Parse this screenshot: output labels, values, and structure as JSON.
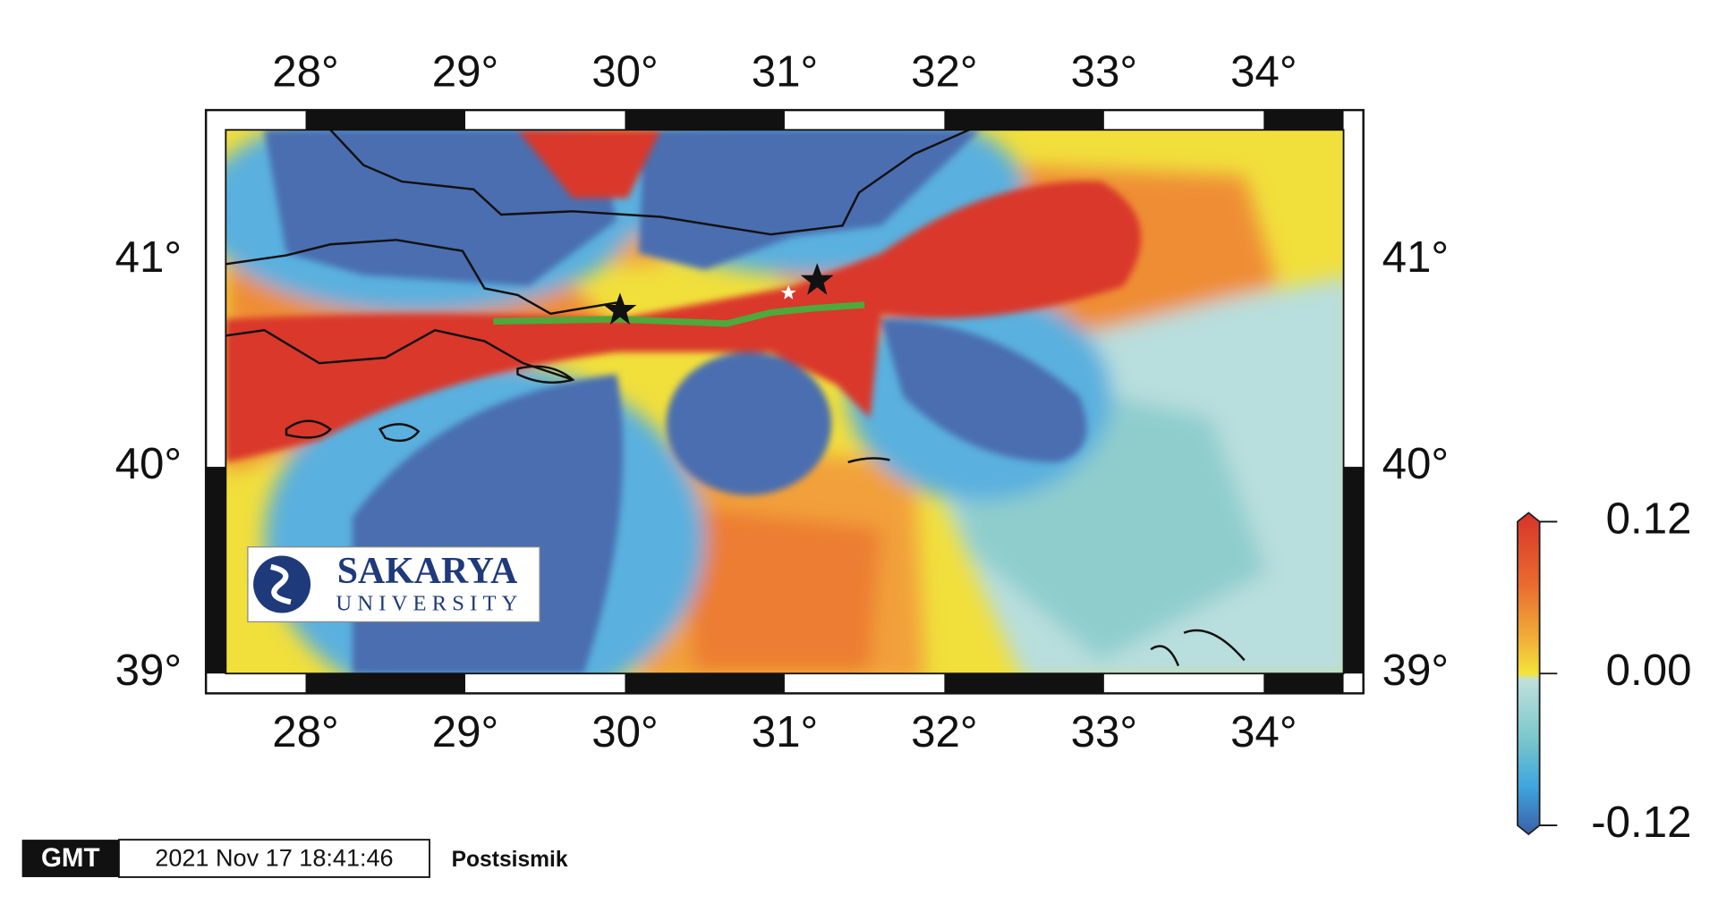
{
  "map": {
    "xlim": [
      27.5,
      34.5
    ],
    "ylim": [
      39,
      41.63
    ],
    "xticks": [
      {
        "value": 28,
        "label": "28°"
      },
      {
        "value": 29,
        "label": "29°"
      },
      {
        "value": 30,
        "label": "30°"
      },
      {
        "value": 31,
        "label": "31°"
      },
      {
        "value": 32,
        "label": "32°"
      },
      {
        "value": 33,
        "label": "33°"
      },
      {
        "value": 34,
        "label": "34°"
      }
    ],
    "yticks": [
      {
        "value": 39,
        "label": "39°"
      },
      {
        "value": 40,
        "label": "40°"
      },
      {
        "value": 41,
        "label": "41°"
      }
    ]
  },
  "logo": {
    "name": "SAKARYA",
    "subtitle": "UNIVERSITY"
  },
  "colorbar": {
    "lim": [
      -0.12,
      0.12
    ],
    "ticks": [
      {
        "value": 0.12,
        "label": "0.12"
      },
      {
        "value": 0,
        "label": "0.00"
      },
      {
        "value": -0.12,
        "label": "-0.12"
      }
    ]
  },
  "footer": {
    "logo": "GMT",
    "timestamp": "2021 Nov 17 18:41:46",
    "label": "Postsismik"
  }
}
